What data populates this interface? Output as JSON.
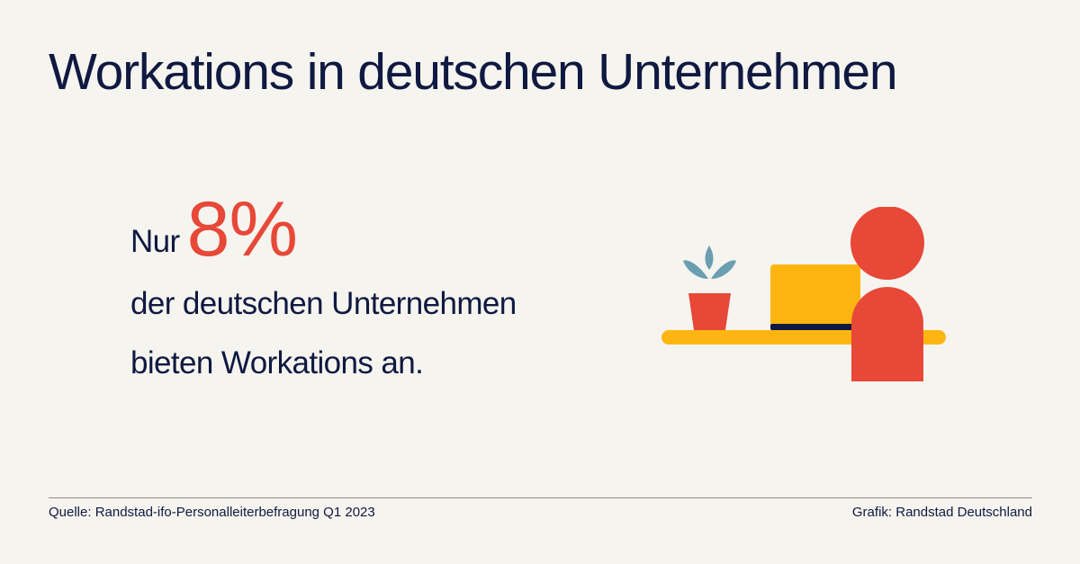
{
  "title": "Workations in deutschen Unternehmen",
  "stat": {
    "prefix": "Nur",
    "value": "8%",
    "line1": "der deutschen Unternehmen",
    "line2": "bieten Workations an."
  },
  "footer": {
    "source": "Quelle: Randstad-ifo-Personalleiterbefragung Q1 2023",
    "credit": "Grafik: Randstad Deutschland"
  },
  "colors": {
    "background": "#f6f4ef",
    "navy": "#0f1941",
    "red": "#e74837",
    "yellow": "#ffb511",
    "teal": "#6a9eb1"
  },
  "illustration": {
    "icons": [
      "plant-icon",
      "laptop-icon",
      "person-icon",
      "desk-icon"
    ]
  }
}
